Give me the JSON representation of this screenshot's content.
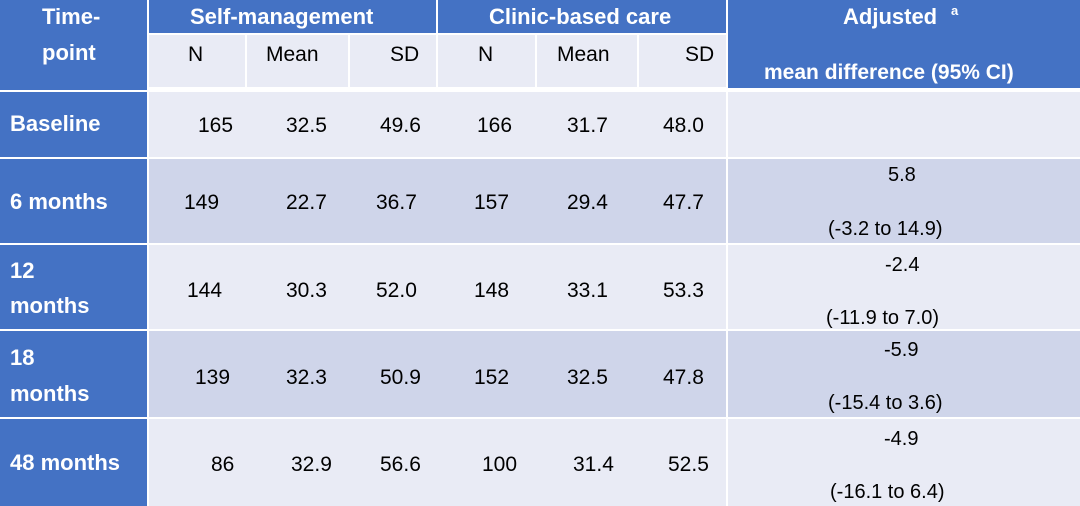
{
  "header": {
    "timepoint": "Time-point",
    "timepoint_l1": "Time-",
    "timepoint_l2": "point",
    "group1": "Self-management",
    "group2": "Clinic-based care",
    "adjusted": "Adjusted",
    "adjusted_sup": "a",
    "adjusted_l2": "mean difference (95% CI)",
    "sub_n": "N",
    "sub_mean": "Mean",
    "sub_sd": "SD"
  },
  "rows": [
    {
      "label_l1": "Baseline",
      "label_l2": "",
      "sm_n": "165",
      "sm_mean": "32.5",
      "sm_sd": "49.6",
      "cb_n": "166",
      "cb_mean": "31.7",
      "cb_sd": "48.0",
      "diff": "",
      "ci": ""
    },
    {
      "label_l1": "6 months",
      "label_l2": "",
      "sm_n": "149",
      "sm_mean": "22.7",
      "sm_sd": "36.7",
      "cb_n": "157",
      "cb_mean": "29.4",
      "cb_sd": "47.7",
      "diff": "5.8",
      "ci": "(-3.2 to 14.9)"
    },
    {
      "label_l1": "12",
      "label_l2": "months",
      "sm_n": "144",
      "sm_mean": "30.3",
      "sm_sd": "52.0",
      "cb_n": "148",
      "cb_mean": "33.1",
      "cb_sd": "53.3",
      "diff": "-2.4",
      "ci": "(-11.9 to 7.0)"
    },
    {
      "label_l1": "18",
      "label_l2": "months",
      "sm_n": "139",
      "sm_mean": "32.3",
      "sm_sd": "50.9",
      "cb_n": "152",
      "cb_mean": "32.5",
      "cb_sd": "47.8",
      "diff": "-5.9",
      "ci": "(-15.4 to 3.6)"
    },
    {
      "label_l1": "48 months",
      "label_l2": "",
      "sm_n": "86",
      "sm_mean": "32.9",
      "sm_sd": "56.6",
      "cb_n": "100",
      "cb_mean": "31.4",
      "cb_sd": "52.5",
      "diff": "-4.9",
      "ci": "(-16.1 to 6.4)"
    }
  ],
  "colors": {
    "header_blue": "#4472c4",
    "row_light": "#e9ebf5",
    "row_mid": "#cfd5ea"
  }
}
